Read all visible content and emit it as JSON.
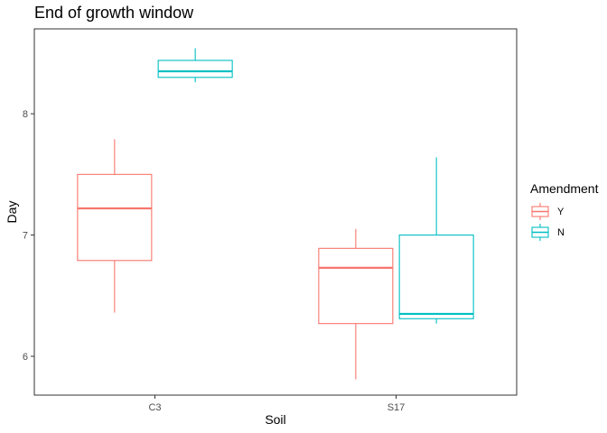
{
  "chart_data": {
    "type": "boxplot",
    "title": "End of growth window",
    "xlabel": "Soil",
    "ylabel": "Day",
    "categories": [
      "C3",
      "S17"
    ],
    "y_ticks": [
      6,
      7,
      8
    ],
    "ylim": [
      5.68,
      8.7
    ],
    "grid": false,
    "legend": {
      "title": "Amendment",
      "position": "right",
      "entries": [
        "Y",
        "N"
      ]
    },
    "colors": {
      "Y": "#F8766D",
      "N": "#00BFC4"
    },
    "series": [
      {
        "name": "Y",
        "boxes": [
          {
            "category": "C3",
            "min": 6.36,
            "q1": 6.79,
            "median": 7.22,
            "q3": 7.5,
            "max": 7.79
          },
          {
            "category": "S17",
            "min": 5.81,
            "q1": 6.27,
            "median": 6.73,
            "q3": 6.89,
            "max": 7.05
          }
        ]
      },
      {
        "name": "N",
        "boxes": [
          {
            "category": "C3",
            "min": 8.26,
            "q1": 8.3,
            "median": 8.35,
            "q3": 8.44,
            "max": 8.54
          },
          {
            "category": "S17",
            "min": 6.27,
            "q1": 6.31,
            "median": 6.35,
            "q3": 7.0,
            "max": 7.64
          }
        ]
      }
    ]
  }
}
